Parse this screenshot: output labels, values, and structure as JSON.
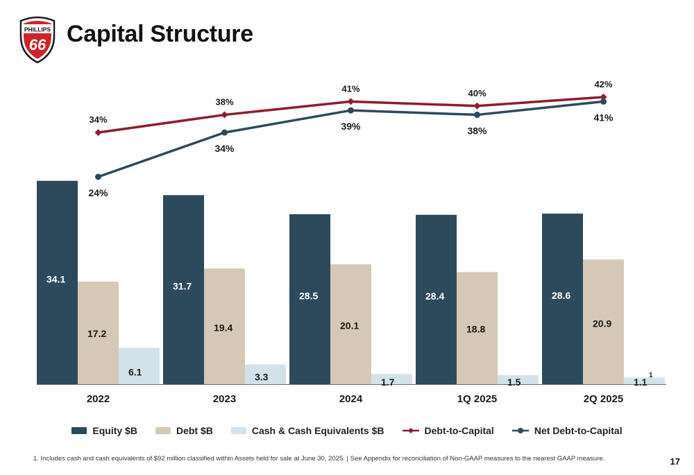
{
  "header": {
    "title": "Capital Structure",
    "logo_text_top": "PHILLIPS",
    "logo_text_number": "66"
  },
  "chart_data": {
    "type": "bar",
    "categories": [
      "2022",
      "2023",
      "2024",
      "1Q 2025",
      "2Q 2025"
    ],
    "series": [
      {
        "name": "Equity $B",
        "values": [
          34.1,
          31.7,
          28.5,
          28.4,
          28.6
        ],
        "value_labels": [
          "34.1",
          "31.7",
          "28.5",
          "28.4",
          "28.6"
        ],
        "color": "#2d4a5c"
      },
      {
        "name": "Debt $B",
        "values": [
          17.2,
          19.4,
          20.1,
          18.8,
          20.9
        ],
        "value_labels": [
          "17.2",
          "19.4",
          "20.1",
          "18.8",
          "20.9"
        ],
        "color": "#d6c8b6"
      },
      {
        "name": "Cash & Cash Equivalents $B",
        "values": [
          6.1,
          3.3,
          1.7,
          1.5,
          1.1
        ],
        "value_labels": [
          "6.1",
          "3.3",
          "1.7",
          "1.5",
          "1.1"
        ],
        "color": "#d3e2ea"
      }
    ],
    "line_series": [
      {
        "name": "Debt-to-Capital",
        "values": [
          34,
          38,
          41,
          40,
          42
        ],
        "value_labels": [
          "34%",
          "38%",
          "41%",
          "40%",
          "42%"
        ],
        "color": "#8e1b32",
        "marker": "diamond"
      },
      {
        "name": "Net Debt-to-Capital",
        "values": [
          24,
          34,
          39,
          38,
          41
        ],
        "value_labels": [
          "24%",
          "34%",
          "39%",
          "38%",
          "41%"
        ],
        "color": "#2d4a5c",
        "marker": "circle"
      }
    ],
    "annotations": [
      {
        "category": "2Q 2025",
        "series": "Cash & Cash Equivalents $B",
        "text": "1"
      }
    ],
    "legend_position": "bottom",
    "grid": false
  },
  "footnote": "1.  Includes cash and cash equivalents of $92 million classified within Assets held for sale at June 30, 2025. | See Appendix for reconciliation of Non-GAAP measures to the nearest GAAP measure.",
  "page_number": "17"
}
